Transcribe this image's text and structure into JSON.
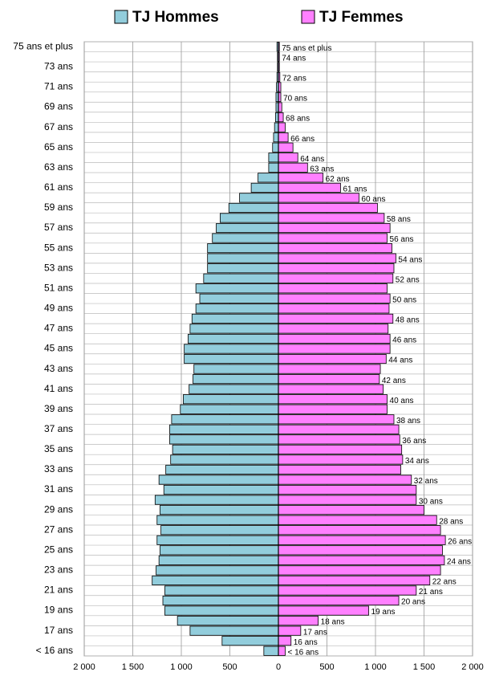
{
  "chart_data": {
    "type": "pyramid",
    "categories": [
      "< 16 ans",
      "16 ans",
      "17 ans",
      "18 ans",
      "19 ans",
      "20 ans",
      "21 ans",
      "22 ans",
      "23 ans",
      "24 ans",
      "25 ans",
      "26 ans",
      "27 ans",
      "28 ans",
      "29 ans",
      "30 ans",
      "31 ans",
      "32 ans",
      "33 ans",
      "34 ans",
      "35 ans",
      "36 ans",
      "37 ans",
      "38 ans",
      "39 ans",
      "40 ans",
      "41 ans",
      "42 ans",
      "43 ans",
      "44 ans",
      "45 ans",
      "46 ans",
      "47 ans",
      "48 ans",
      "49 ans",
      "50 ans",
      "51 ans",
      "52 ans",
      "53 ans",
      "54 ans",
      "55 ans",
      "56 ans",
      "57 ans",
      "58 ans",
      "59 ans",
      "60 ans",
      "61 ans",
      "62 ans",
      "63 ans",
      "64 ans",
      "65 ans",
      "66 ans",
      "67 ans",
      "68 ans",
      "69 ans",
      "70 ans",
      "71 ans",
      "72 ans",
      "73 ans",
      "74 ans",
      "75 ans et plus"
    ],
    "series": [
      {
        "name": "TJ Hommes",
        "color": "#92cddc",
        "values": [
          150,
          580,
          910,
          1040,
          1170,
          1190,
          1170,
          1300,
          1260,
          1230,
          1220,
          1250,
          1210,
          1250,
          1220,
          1270,
          1180,
          1230,
          1160,
          1110,
          1090,
          1120,
          1120,
          1100,
          1010,
          980,
          920,
          880,
          870,
          970,
          970,
          930,
          910,
          890,
          850,
          810,
          850,
          770,
          730,
          730,
          730,
          680,
          640,
          600,
          510,
          400,
          280,
          210,
          100,
          100,
          60,
          50,
          40,
          30,
          25,
          25,
          20,
          15,
          10,
          10,
          15
        ]
      },
      {
        "name": "TJ Femmes",
        "color": "#ff80ff",
        "values": [
          70,
          130,
          230,
          410,
          930,
          1240,
          1420,
          1560,
          1670,
          1710,
          1690,
          1720,
          1670,
          1630,
          1500,
          1420,
          1420,
          1370,
          1260,
          1280,
          1270,
          1250,
          1240,
          1190,
          1120,
          1120,
          1080,
          1040,
          1050,
          1110,
          1150,
          1150,
          1130,
          1180,
          1140,
          1150,
          1120,
          1180,
          1190,
          1210,
          1170,
          1120,
          1150,
          1090,
          1020,
          830,
          640,
          460,
          300,
          200,
          150,
          100,
          70,
          50,
          35,
          25,
          25,
          15,
          10,
          10,
          10
        ],
        "value_labels": [
          "< 16 ans",
          "16 ans",
          "17 ans",
          "18 ans",
          "19 ans",
          "20 ans",
          "21 ans",
          "22 ans",
          null,
          "24 ans",
          null,
          "26 ans",
          null,
          "28 ans",
          null,
          "30 ans",
          null,
          "32 ans",
          null,
          "34 ans",
          null,
          "36 ans",
          null,
          "38 ans",
          null,
          "40 ans",
          null,
          "42 ans",
          null,
          "44 ans",
          null,
          "46 ans",
          null,
          "48 ans",
          null,
          "50 ans",
          null,
          "52 ans",
          null,
          "54 ans",
          null,
          "56 ans",
          null,
          "58 ans",
          null,
          "60 ans",
          "61 ans",
          "62 ans",
          "63 ans",
          "64 ans",
          null,
          "66 ans",
          null,
          "68 ans",
          null,
          "70 ans",
          null,
          "72 ans",
          null,
          "74 ans",
          "75 ans et plus"
        ]
      }
    ],
    "xlim": [
      -2000,
      2000
    ],
    "xticks": [
      {
        "value": -2000,
        "label": "2 000"
      },
      {
        "value": -1500,
        "label": "1 500"
      },
      {
        "value": -1000,
        "label": "1 000"
      },
      {
        "value": -500,
        "label": "500"
      },
      0,
      500,
      {
        "value": 1000,
        "label": "1 000"
      },
      {
        "value": 1500,
        "label": "1 500"
      },
      {
        "value": 2000,
        "label": "2 000"
      }
    ],
    "grid": true
  }
}
